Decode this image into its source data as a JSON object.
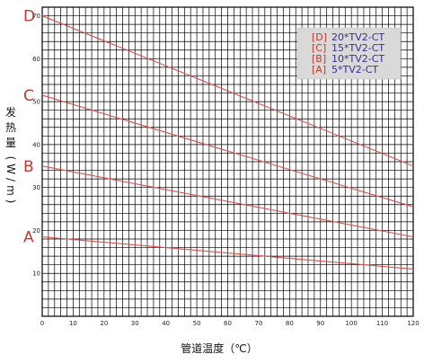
{
  "chart_data": {
    "type": "line",
    "title": "",
    "xlabel": "管道温度（℃）",
    "ylabel_chars": [
      "发",
      "热",
      "量",
      "(",
      "W",
      "/",
      "m",
      ")"
    ],
    "xlim": [
      0,
      120
    ],
    "ylim": [
      0,
      72
    ],
    "x_ticks": [
      0,
      10,
      20,
      30,
      40,
      50,
      60,
      70,
      80,
      90,
      100,
      110,
      120
    ],
    "y_ticks": [
      10,
      20,
      30,
      40,
      50,
      60,
      70
    ],
    "grid": true,
    "legend_position": "top-right",
    "series": [
      {
        "key": "D",
        "name": "20*TV2-CT",
        "x": [
          0,
          120
        ],
        "y": [
          70,
          35
        ]
      },
      {
        "key": "C",
        "name": "15*TV2-CT",
        "x": [
          0,
          120
        ],
        "y": [
          51.5,
          25.5
        ]
      },
      {
        "key": "B",
        "name": "10*TV2-CT",
        "x": [
          0,
          120
        ],
        "y": [
          35,
          18.5
        ]
      },
      {
        "key": "A",
        "name": "5*TV2-CT",
        "x": [
          0,
          120
        ],
        "y": [
          18.5,
          11
        ]
      }
    ],
    "legend_order": [
      "D",
      "C",
      "B",
      "A"
    ],
    "colors": {
      "curve": "#d9534f",
      "grid": "#000000",
      "legend_bg": "#d9d9d9",
      "legend_name": "#3a2e8a",
      "letter": "#c0392b"
    }
  }
}
